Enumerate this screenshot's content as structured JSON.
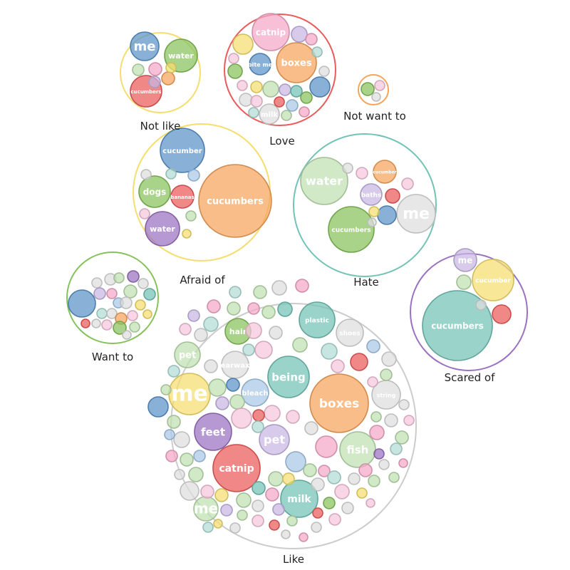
{
  "colors": {
    "blue": "#5b93c9",
    "green": "#86c25a",
    "red": "#ec5a5a",
    "orange": "#f7a35c",
    "purple": "#9a71c1",
    "teal": "#72c2b6",
    "yellow": "#f5de6e",
    "pink": "#f4a8c7",
    "gray": "#c9c9c9",
    "lightgreen": "#bfe0b0",
    "lightpurple": "#c7b6e3",
    "lightblue": "#a7c8e6",
    "lightpink": "#f6c6dc",
    "lightteal": "#b2ddd5",
    "lightgray": "#dedede"
  },
  "clusters": [
    {
      "id": "not-like",
      "label": "Not like",
      "outline": "#f5de6e"
    },
    {
      "id": "love",
      "label": "Love",
      "outline": "#ec5a5a"
    },
    {
      "id": "not-want-to",
      "label": "Not want to",
      "outline": "#f7a35c"
    },
    {
      "id": "afraid-of",
      "label": "Afraid of",
      "outline": "#f5de6e"
    },
    {
      "id": "hate",
      "label": "Hate",
      "outline": "#72c2b6"
    },
    {
      "id": "want-to",
      "label": "Want to",
      "outline": "#86c25a"
    },
    {
      "id": "scared-of",
      "label": "Scared of",
      "outline": "#9a71c1"
    },
    {
      "id": "like",
      "label": "Like",
      "outline": "#cccccc"
    }
  ],
  "bubble_labels": {
    "not-like": [
      "me",
      "water",
      "cucumbers"
    ],
    "love": [
      "catnip",
      "boxes",
      "bite me",
      "milk"
    ],
    "not-want-to": [],
    "afraid-of": [
      "cucumber",
      "dogs",
      "bananas",
      "water",
      "cucumbers"
    ],
    "hate": [
      "water",
      "cucumber",
      "baths",
      "cucumbers",
      "me"
    ],
    "want-to": [],
    "scared-of": [
      "me",
      "cucumber",
      "cucumbers"
    ],
    "like": [
      "plastic",
      "hair",
      "shoes",
      "pet",
      "earwax",
      "being",
      "me",
      "bleach",
      "boxes",
      "string",
      "feet",
      "pet",
      "fish",
      "catnip",
      "milk",
      "me"
    ]
  }
}
